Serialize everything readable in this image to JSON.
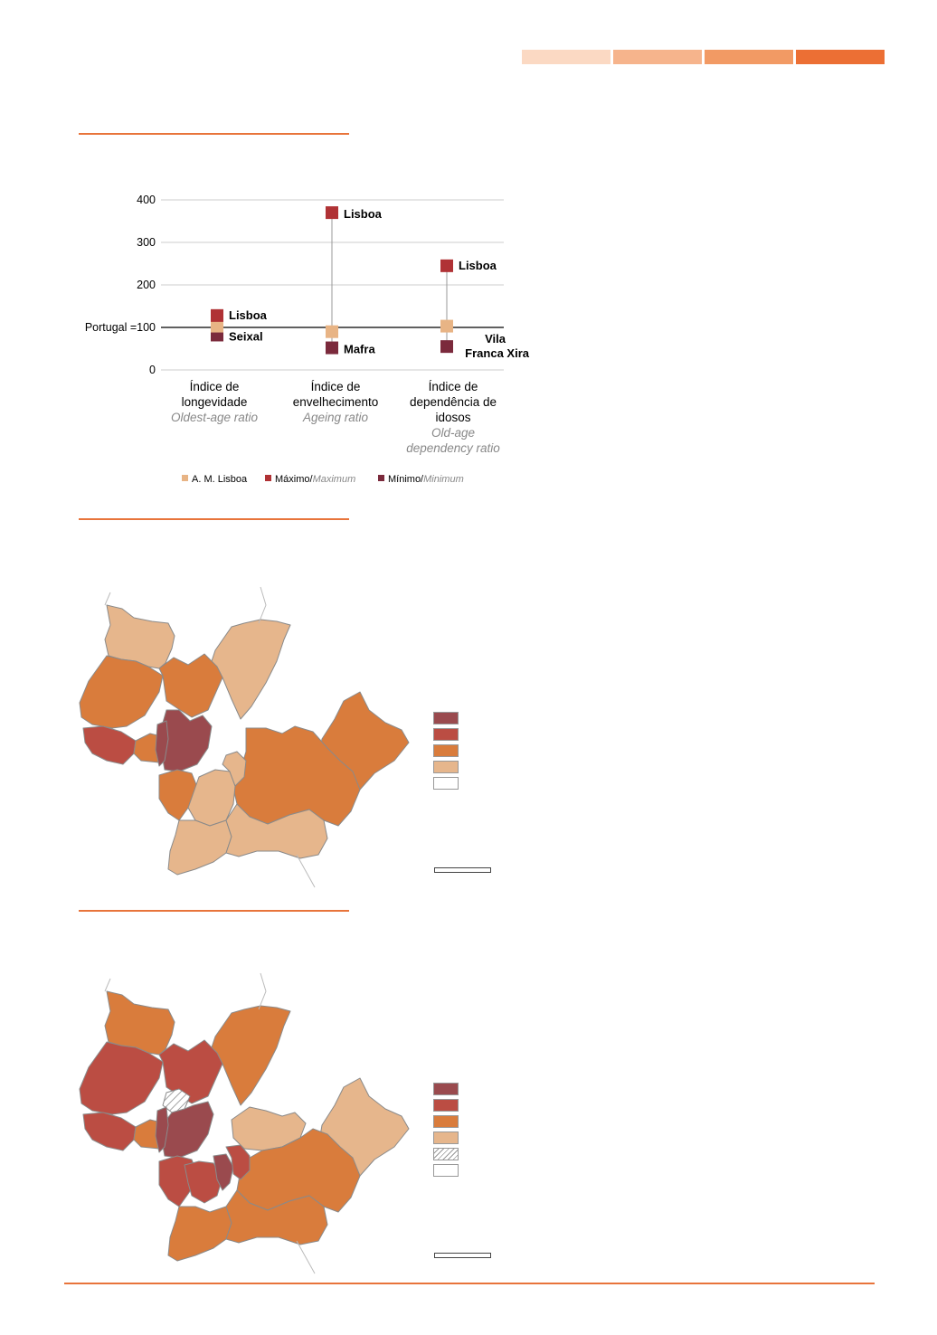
{
  "header_bars": {
    "colors": [
      "#fbd9c3",
      "#f6b48c",
      "#f29a64",
      "#ec6f34"
    ]
  },
  "chart_data": {
    "type": "scatter",
    "ylim": [
      0,
      400
    ],
    "y_ticks": [
      "0",
      "100",
      "200",
      "300",
      "400"
    ],
    "reference_line": {
      "label": "Portugal =100",
      "value": 100
    },
    "categories": [
      {
        "pt": [
          "Índice de",
          "longevidade"
        ],
        "en": [
          "Oldest-age ratio"
        ]
      },
      {
        "pt": [
          "Índice de",
          "envelhecimento"
        ],
        "en": [
          "Ageing ratio"
        ]
      },
      {
        "pt": [
          "Índice de",
          "dependência de",
          "idosos"
        ],
        "en": [
          "Old-age",
          "dependency ratio"
        ]
      }
    ],
    "series": [
      {
        "key": "aml",
        "color": "#e8b485",
        "values": [
          103,
          90,
          103
        ]
      },
      {
        "key": "max",
        "color": "#b03235",
        "values": [
          128,
          370,
          245
        ],
        "point_labels": [
          [
            "Lisboa"
          ],
          [
            "Lisboa"
          ],
          [
            "Lisboa"
          ]
        ]
      },
      {
        "key": "min",
        "color": "#7b2a3c",
        "values": [
          82,
          52,
          55
        ],
        "point_labels": [
          [
            "Seixal"
          ],
          [
            "Mafra"
          ],
          [
            "Vila",
            "Franca Xira"
          ]
        ]
      }
    ],
    "legend": [
      {
        "color": "#e8b485",
        "label": "A. M. Lisboa",
        "label_en": ""
      },
      {
        "color": "#b03235",
        "label": "Máximo/",
        "label_en": "Maximum"
      },
      {
        "color": "#7b2a3c",
        "label": "Mínimo/",
        "label_en": "Minimum"
      }
    ]
  },
  "map_legend": {
    "colors": {
      "c1": "#9a4a4e",
      "c2": "#bb4d43",
      "c3": "#d97c3c",
      "c4": "#e6b68c",
      "none": "#ffffff"
    }
  }
}
